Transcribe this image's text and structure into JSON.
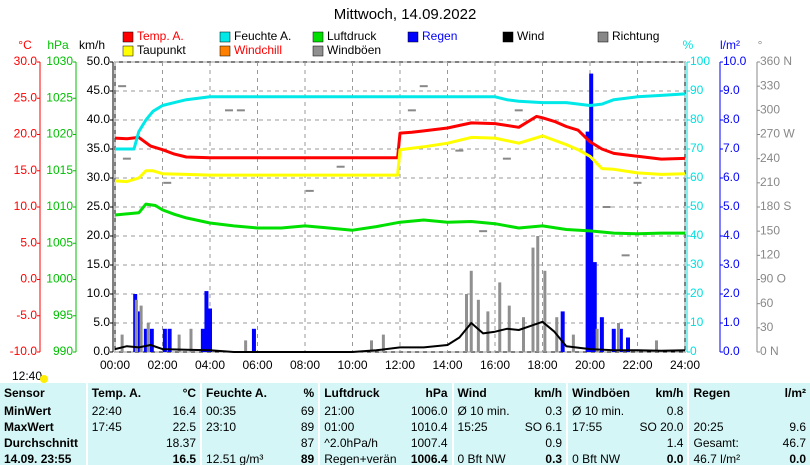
{
  "chart_data": {
    "type": "line",
    "title": "Mittwoch, 14.09.2022",
    "xlim": [
      0,
      24
    ],
    "xticks": [
      {
        "value": 0,
        "label": "00:00"
      },
      {
        "value": 2,
        "label": "02:00"
      },
      {
        "value": 4,
        "label": "04:00"
      },
      {
        "value": 6,
        "label": "06:00"
      },
      {
        "value": 8,
        "label": "08:00"
      },
      {
        "value": 10,
        "label": "10:00"
      },
      {
        "value": 12,
        "label": "12:00"
      },
      {
        "value": 14,
        "label": "14:00"
      },
      {
        "value": 16,
        "label": "16:00"
      },
      {
        "value": 18,
        "label": "18:00"
      },
      {
        "value": 20,
        "label": "20:00"
      },
      {
        "value": 22,
        "label": "22:00"
      },
      {
        "value": 24,
        "label": "24:00"
      }
    ],
    "grid": true,
    "axes": [
      {
        "label": "°C",
        "color": "#ff0000",
        "ylim": [
          -10,
          30
        ],
        "yticks": [
          {
            "value": -10,
            "label": "-10.0"
          },
          {
            "value": -5,
            "label": "-5.0"
          },
          {
            "value": 0,
            "label": "0.0"
          },
          {
            "value": 5,
            "label": "5.0"
          },
          {
            "value": 10,
            "label": "10.0"
          },
          {
            "value": 15,
            "label": "15.0"
          },
          {
            "value": 20,
            "label": "20.0"
          },
          {
            "value": 25,
            "label": "25.0"
          },
          {
            "value": 30,
            "label": "30.0"
          }
        ]
      },
      {
        "label": "hPa",
        "color": "#00c000",
        "ylim": [
          990,
          1030
        ],
        "yticks": [
          990,
          995,
          1000,
          1005,
          1010,
          1015,
          1020,
          1025,
          1030
        ]
      },
      {
        "label": "km/h",
        "color": "#000000",
        "ylim": [
          0,
          50
        ],
        "yticks": [
          {
            "value": 0,
            "label": "0.0"
          },
          {
            "value": 5,
            "label": "5.0"
          },
          {
            "value": 10,
            "label": "10.0"
          },
          {
            "value": 15,
            "label": "15.0"
          },
          {
            "value": 20,
            "label": "20.0"
          },
          {
            "value": 25,
            "label": "25.0"
          },
          {
            "value": 30,
            "label": "30.0"
          },
          {
            "value": 35,
            "label": "35.0"
          },
          {
            "value": 40,
            "label": "40.0"
          },
          {
            "value": 45,
            "label": "45.0"
          },
          {
            "value": 50,
            "label": "50.0"
          }
        ]
      },
      {
        "label": "%",
        "color": "#00e0e0",
        "ylim": [
          0,
          100
        ],
        "yticks": [
          0,
          10,
          20,
          30,
          40,
          50,
          60,
          70,
          80,
          90,
          100
        ]
      },
      {
        "label": "l/m²",
        "color": "#0000ff",
        "ylim": [
          0,
          10
        ],
        "yticks": [
          {
            "value": 0,
            "label": "0.0"
          },
          {
            "value": 1,
            "label": "1.0"
          },
          {
            "value": 2,
            "label": "2.0"
          },
          {
            "value": 3,
            "label": "3.0"
          },
          {
            "value": 4,
            "label": "4.0"
          },
          {
            "value": 5,
            "label": "5.0"
          },
          {
            "value": 6,
            "label": "6.0"
          },
          {
            "value": 7,
            "label": "7.0"
          },
          {
            "value": 8,
            "label": "8.0"
          },
          {
            "value": 9,
            "label": "9.0"
          },
          {
            "value": 10,
            "label": "10.0"
          }
        ]
      },
      {
        "label": "°",
        "color": "#888888",
        "ylim": [
          0,
          360
        ],
        "yticks": [
          {
            "value": 0,
            "label": "0 N"
          },
          {
            "value": 30,
            "label": "30"
          },
          {
            "value": 60,
            "label": "60"
          },
          {
            "value": 90,
            "label": "90 O"
          },
          {
            "value": 120,
            "label": "120"
          },
          {
            "value": 150,
            "label": "150"
          },
          {
            "value": 180,
            "label": "180 S"
          },
          {
            "value": 210,
            "label": "210"
          },
          {
            "value": 240,
            "label": "240"
          },
          {
            "value": 270,
            "label": "270 W"
          },
          {
            "value": 300,
            "label": "300"
          },
          {
            "value": 330,
            "label": "330"
          },
          {
            "value": 360,
            "label": "360 N"
          }
        ]
      }
    ],
    "series": [
      {
        "name": "Temp. A.",
        "color": "#ff0000",
        "axis": 0,
        "style": "line",
        "x": [
          0,
          0.5,
          1,
          1.5,
          2,
          2.5,
          3,
          4,
          5,
          6,
          7,
          8,
          9,
          10,
          11,
          11.9,
          12,
          12.5,
          13,
          14,
          15,
          16,
          17,
          17.75,
          18,
          18.5,
          19,
          19.5,
          20,
          20.5,
          21,
          22,
          23,
          24
        ],
        "values": [
          19.5,
          19.4,
          19.6,
          18.4,
          17.9,
          17.3,
          16.9,
          16.8,
          16.8,
          16.8,
          16.8,
          16.8,
          16.8,
          16.8,
          16.8,
          16.8,
          20.2,
          20.3,
          20.5,
          20.9,
          21.6,
          21.5,
          21.0,
          22.5,
          22.3,
          21.8,
          21.1,
          20.6,
          19.0,
          18.0,
          17.4,
          17.0,
          16.6,
          16.7
        ]
      },
      {
        "name": "Feuchte A.",
        "color": "#00e8e8",
        "axis": 3,
        "style": "line",
        "x": [
          0,
          0.8,
          1,
          1.3,
          1.6,
          2,
          2.5,
          3,
          4,
          6,
          8,
          10,
          12,
          14,
          16,
          16.5,
          17,
          18,
          19,
          20,
          20.5,
          21,
          22,
          23,
          24
        ],
        "values": [
          70,
          70,
          76,
          80,
          83,
          85,
          86,
          87,
          88,
          88,
          88,
          88,
          88,
          88,
          88,
          87,
          86.5,
          86,
          86,
          85,
          85.5,
          87,
          88,
          88.5,
          89
        ]
      },
      {
        "name": "Luftdruck",
        "color": "#00e000",
        "axis": 1,
        "style": "line",
        "x": [
          0,
          1,
          1.3,
          1.7,
          2,
          2.5,
          3,
          4,
          5,
          6,
          7,
          8,
          9,
          10,
          11,
          12,
          13,
          14,
          15,
          16,
          17,
          18,
          19,
          20,
          21,
          22,
          23,
          24
        ],
        "values": [
          1008.9,
          1009.2,
          1010.4,
          1010.2,
          1009.6,
          1009.0,
          1008.5,
          1007.8,
          1007.4,
          1007.1,
          1007.1,
          1007.4,
          1007.1,
          1006.8,
          1007.3,
          1007.9,
          1008.2,
          1007.9,
          1008.0,
          1007.7,
          1007.1,
          1007.4,
          1006.9,
          1006.7,
          1006.4,
          1006.3,
          1006.4,
          1006.4
        ]
      },
      {
        "name": "Regen",
        "color": "#0000ff",
        "axis": 4,
        "style": "bar",
        "x": [
          0.85,
          1.05,
          1.3,
          1.55,
          2.1,
          2.3,
          3.7,
          3.85,
          4.0,
          5.85,
          18.85,
          19.9,
          20.05,
          20.2,
          20.5,
          21.0,
          21.3,
          21.6
        ],
        "values": [
          2.0,
          1.4,
          0.8,
          0.8,
          0.8,
          0.8,
          0.8,
          2.1,
          1.5,
          0.8,
          1.4,
          7.6,
          9.6,
          3.1,
          1.2,
          0.8,
          0.8,
          0.5
        ]
      },
      {
        "name": "Wind",
        "color": "#000000",
        "axis": 2,
        "style": "line",
        "x": [
          0,
          0.5,
          1,
          1.5,
          2,
          3,
          4,
          5,
          6,
          8,
          10,
          11,
          12,
          13,
          14,
          14.5,
          15,
          15.5,
          16,
          16.5,
          17,
          17.5,
          18,
          18.5,
          19,
          20,
          21,
          22,
          23,
          24
        ],
        "values": [
          0.5,
          1,
          0.8,
          1.2,
          0.5,
          0.4,
          0.3,
          0,
          0,
          0,
          0,
          0.3,
          0.8,
          0.8,
          1.2,
          2.5,
          5,
          3.2,
          3.5,
          4,
          3.8,
          4.5,
          5.2,
          3.5,
          1,
          0.5,
          0.3,
          0.3,
          0.2,
          0.3
        ]
      },
      {
        "name": "Richtung",
        "color": "#888888",
        "axis": 5,
        "style": "dot",
        "x": [
          0.3,
          0.5,
          2.2,
          4.8,
          5.3,
          8.2,
          9.5,
          12.5,
          13.0,
          14.5,
          15.5,
          16.5,
          17.0,
          20.7,
          21.5,
          22.0
        ],
        "values": [
          330,
          240,
          210,
          300,
          300,
          200,
          230,
          300,
          330,
          250,
          150,
          240,
          300,
          180,
          120,
          210
        ]
      },
      {
        "name": "Taupunkt",
        "color": "#ffff00",
        "axis": 0,
        "style": "line",
        "x": [
          0,
          0.5,
          1,
          1.3,
          1.6,
          2,
          3,
          4,
          6,
          8,
          10,
          11.9,
          12,
          13,
          14,
          15,
          16,
          17,
          18,
          19,
          19.5,
          20,
          20.5,
          21,
          22,
          23,
          24
        ],
        "values": [
          13.6,
          13.5,
          14.0,
          15.0,
          15.0,
          14.6,
          14.5,
          14.4,
          14.4,
          14.4,
          14.4,
          14.4,
          17.9,
          18.3,
          18.8,
          19.6,
          19.5,
          18.8,
          19.8,
          18.6,
          17.9,
          17.0,
          15.3,
          15.2,
          14.7,
          14.5,
          14.6
        ]
      },
      {
        "name": "Windchill",
        "color": "#ff8000",
        "axis": 0,
        "style": "line",
        "x": [],
        "values": []
      },
      {
        "name": "Windböen",
        "color": "#909090",
        "axis": 2,
        "style": "bar",
        "x": [
          0.3,
          0.9,
          1.1,
          1.4,
          2.7,
          3.2,
          5.5,
          10.8,
          11.3,
          14.8,
          15.0,
          15.3,
          15.7,
          16.2,
          16.6,
          17.2,
          17.6,
          17.8,
          18.1,
          18.6,
          19.3,
          20.3,
          21.2,
          22.8
        ],
        "values": [
          3,
          9,
          8,
          5,
          3,
          4,
          2,
          2,
          3,
          10,
          14,
          9,
          7,
          12,
          8,
          6,
          18,
          20,
          14,
          6,
          3,
          4,
          5,
          2
        ]
      }
    ]
  },
  "time_marker": "12:40",
  "table": {
    "header": [
      "Sensor",
      "Temp. A.",
      "°C",
      "Feuchte A.",
      "%",
      "Luftdruck",
      "hPa",
      "Wind",
      "km/h",
      "Windböen",
      "km/h",
      "Regen",
      "l/m²"
    ],
    "rows": [
      [
        "MinWert",
        "22:40",
        "16.4",
        "00:35",
        "69",
        "21:00",
        "1006.0",
        "Ø 10 min.",
        "0.3",
        "Ø 10 min.",
        "0.8",
        null,
        null
      ],
      [
        "MaxWert",
        "17:45",
        "22.5",
        "23:10",
        "89",
        "01:00",
        "1010.4",
        "15:25",
        "SO 6.1",
        "17:55",
        "SO 20.0",
        "20:25",
        "9.6"
      ],
      [
        "Durchschnitt",
        null,
        "18.37",
        null,
        "87",
        "^2.0hPa/h",
        "1007.4",
        null,
        "0.9",
        null,
        "1.4",
        "Gesamt:",
        "46.7"
      ],
      [
        "14.09. 23:55",
        null,
        "16.5",
        "12.51 g/m³",
        "89",
        "Regen+verän",
        "1006.4",
        "0 Bft NW",
        "0.3",
        "0 Bft NW",
        "0.0",
        "46.7 l/m²",
        "0.0"
      ]
    ]
  }
}
